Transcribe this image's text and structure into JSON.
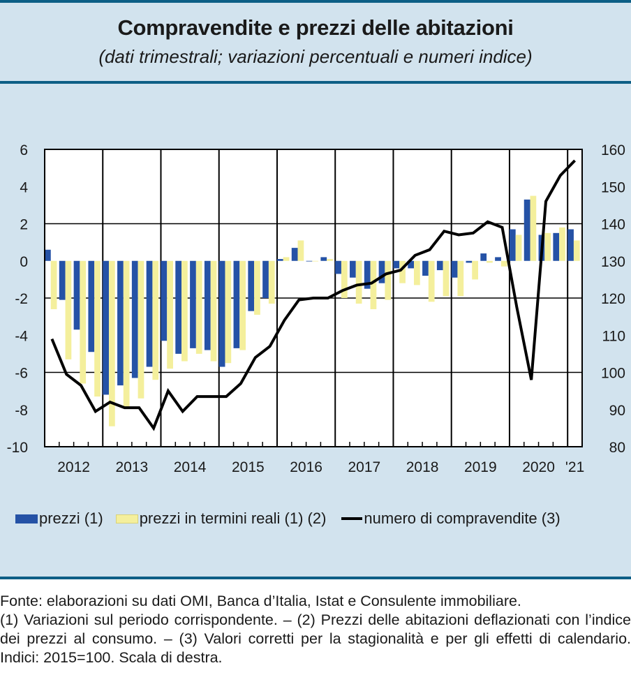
{
  "header": {
    "title": "Compravendite e prezzi delle abitazioni",
    "subtitle": "(dati trimestrali; variazioni percentuali e numeri indice)"
  },
  "chart_data": {
    "type": "bar",
    "title": "Compravendite e prezzi delle abitazioni",
    "subtitle": "(dati trimestrali; variazioni percentuali e numeri indice)",
    "xlabel": "",
    "ylabel_left": "",
    "ylabel_right": "",
    "ylim_left": [
      -10,
      6
    ],
    "ylim_right": [
      80,
      160
    ],
    "yticks_left": [
      "6",
      "4",
      "2",
      "0",
      "-2",
      "-4",
      "-6",
      "-8",
      "-10"
    ],
    "yticks_right": [
      "160",
      "150",
      "140",
      "130",
      "120",
      "110",
      "100",
      "90",
      "80"
    ],
    "year_labels": [
      "2012",
      "2013",
      "2014",
      "2015",
      "2016",
      "2017",
      "2018",
      "2019",
      "2020",
      "'21"
    ],
    "grid": true,
    "legend_position": "bottom",
    "categories": [
      "2012Q1",
      "2012Q2",
      "2012Q3",
      "2012Q4",
      "2013Q1",
      "2013Q2",
      "2013Q3",
      "2013Q4",
      "2014Q1",
      "2014Q2",
      "2014Q3",
      "2014Q4",
      "2015Q1",
      "2015Q2",
      "2015Q3",
      "2015Q4",
      "2016Q1",
      "2016Q2",
      "2016Q3",
      "2016Q4",
      "2017Q1",
      "2017Q2",
      "2017Q3",
      "2017Q4",
      "2018Q1",
      "2018Q2",
      "2018Q3",
      "2018Q4",
      "2019Q1",
      "2019Q2",
      "2019Q3",
      "2019Q4",
      "2020Q1",
      "2020Q2",
      "2020Q3",
      "2020Q4",
      "2021Q1"
    ],
    "series": [
      {
        "name": "prezzi (1)",
        "type": "bar",
        "axis": "left",
        "color": "#2552a6",
        "values": [
          0.6,
          -2.1,
          -3.7,
          -4.9,
          -7.2,
          -6.7,
          -6.3,
          -5.7,
          -4.3,
          -5.0,
          -4.7,
          -4.8,
          -5.7,
          -4.7,
          -2.7,
          -2.0,
          0.1,
          0.7,
          0.0,
          0.2,
          -0.7,
          -0.9,
          -1.5,
          -1.2,
          -0.4,
          -0.4,
          -0.8,
          -0.5,
          -0.9,
          -0.1,
          0.4,
          0.2,
          1.7,
          3.3,
          1.4,
          1.5,
          1.7
        ]
      },
      {
        "name": "prezzi in termini reali (1) (2)",
        "type": "bar",
        "axis": "left",
        "color": "#f4ef9c",
        "values": [
          -2.6,
          -5.3,
          -6.6,
          -7.3,
          -8.9,
          -7.9,
          -7.4,
          -6.4,
          -5.8,
          -5.4,
          -5.0,
          -5.4,
          -5.5,
          -4.8,
          -2.9,
          -2.3,
          0.2,
          1.1,
          0.0,
          0.1,
          -2.0,
          -2.3,
          -2.6,
          -2.1,
          -1.2,
          -1.3,
          -2.2,
          -1.9,
          -1.9,
          -1.0,
          -0.1,
          -0.3,
          1.4,
          3.5,
          1.5,
          1.8,
          1.1
        ]
      },
      {
        "name": "numero di compravendite (3)",
        "type": "line",
        "axis": "right",
        "color": "#000000",
        "values": [
          109,
          99.5,
          96.5,
          89.5,
          92,
          90.5,
          90.5,
          85,
          95,
          89.5,
          93.5,
          93.5,
          93.5,
          97,
          104,
          107,
          114,
          119.5,
          120,
          120,
          122,
          123.5,
          124,
          126.5,
          127.5,
          131.5,
          133,
          138,
          137,
          137.5,
          140.5,
          139,
          117.5,
          98,
          146,
          153,
          157
        ]
      }
    ]
  },
  "legend": {
    "items": [
      {
        "label": "prezzi (1)",
        "color": "#2552a6"
      },
      {
        "label": "prezzi in termini reali (1) (2)",
        "color": "#f4ef9c"
      },
      {
        "label": "numero di compravendite (3)",
        "color": "#000000"
      }
    ]
  },
  "notes": {
    "source": "Fonte: elaborazioni su dati OMI, Banca d’Italia, Istat e Consulente immobiliare.",
    "footnotes": "(1) Variazioni sul periodo corrispondente. – (2) Prezzi delle abitazioni deflazionati con l’indice dei prezzi al consumo. – (3) Valori corretti per la stagionalità e per gli effetti di calendario. Indici: 2015=100. Scala di destra."
  },
  "colors": {
    "panel_background": "#d2e3ee",
    "rule": "#0d5f86",
    "bar_prices": "#2552a6",
    "bar_real_prices": "#f4ef9c",
    "line": "#000000"
  }
}
